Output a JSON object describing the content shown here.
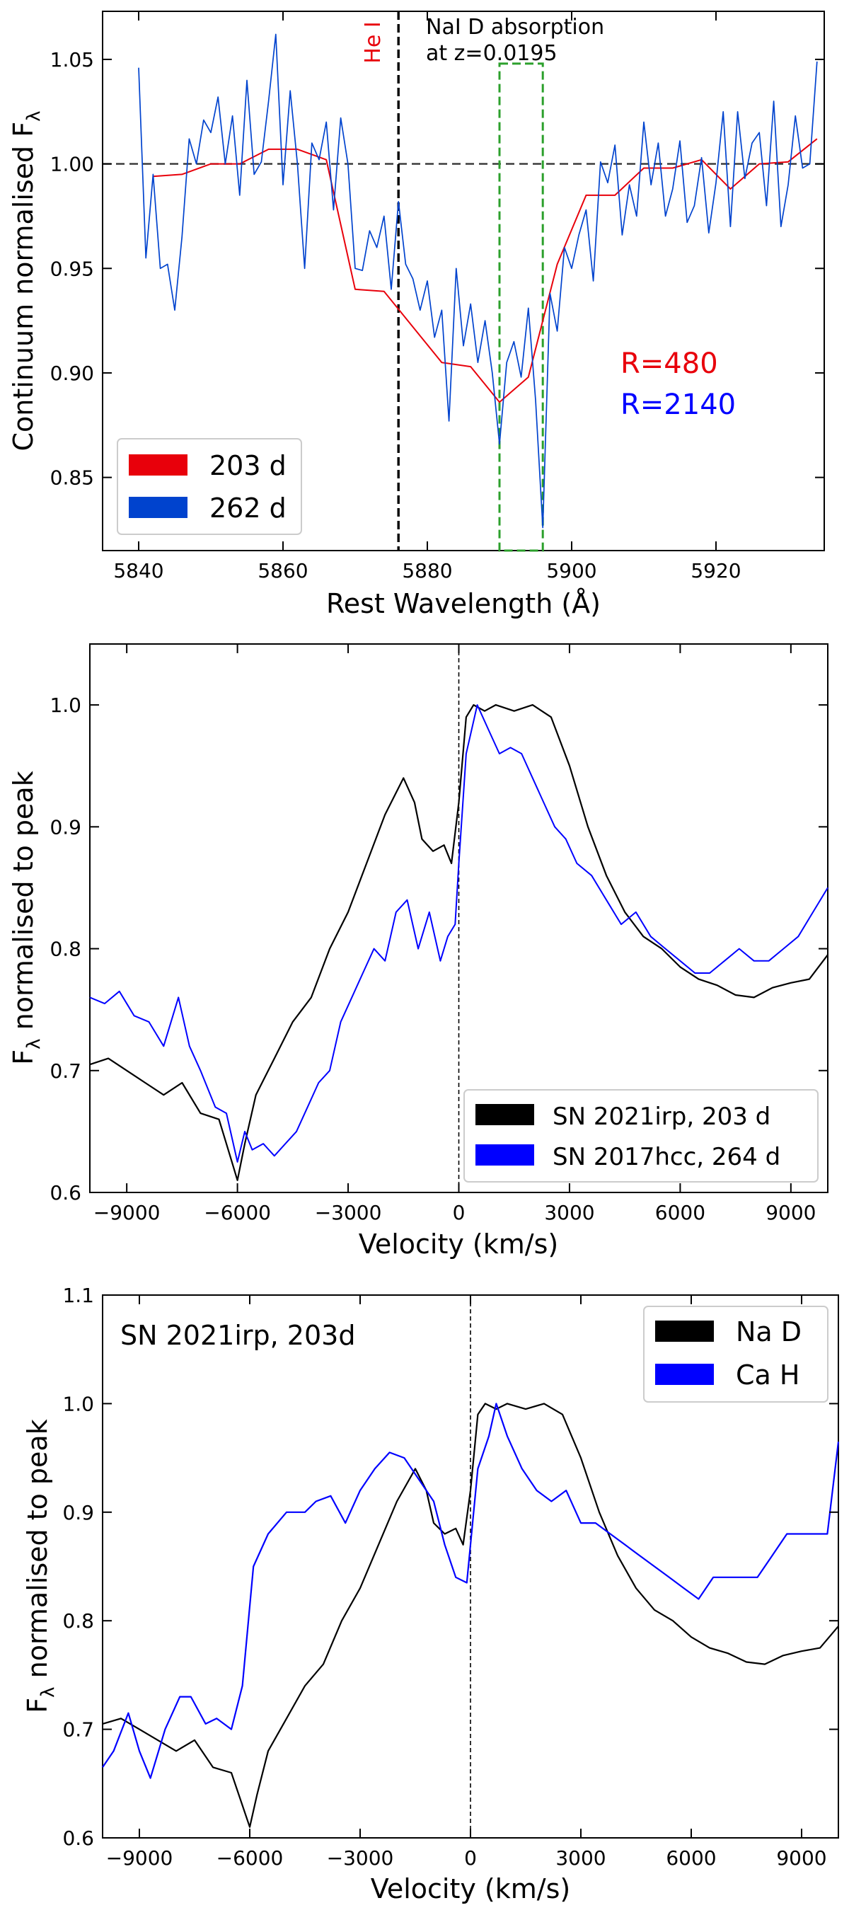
{
  "chart_data": [
    {
      "type": "line",
      "xlabel": "Rest Wavelength (Å)",
      "ylabel": "Continuum normalised F",
      "ylabel_sub": "λ",
      "xlim": [
        5835,
        5935
      ],
      "ylim": [
        0.815,
        1.073
      ],
      "xticks": [
        5840,
        5860,
        5880,
        5900,
        5920
      ],
      "yticks": [
        0.85,
        0.9,
        0.95,
        1.0,
        1.05
      ],
      "ytick_labels": [
        "0.85",
        "0.90",
        "0.95",
        "1.00",
        "1.05"
      ],
      "legend_position": "lower-left",
      "annotations": {
        "hei": "He I",
        "nad_line1": "NaI D absorption",
        "nad_line2": "at z=0.0195",
        "res_red": "R=480",
        "res_blue": "R=2140"
      },
      "reference_lines": {
        "hei_x": 5876,
        "continuum_y": 1.0,
        "nad_box_x": [
          5890,
          5896
        ],
        "nad_box_y": [
          0.815,
          1.048
        ]
      },
      "series": [
        {
          "name": "203 d",
          "color": "#e8000b",
          "x": [
            5842,
            5846,
            5850,
            5854,
            5858,
            5862,
            5866,
            5870,
            5874,
            5878,
            5882,
            5886,
            5890,
            5894,
            5898,
            5902,
            5906,
            5910,
            5914,
            5918,
            5922,
            5926,
            5930,
            5934
          ],
          "y": [
            0.994,
            0.995,
            1.0,
            1.0,
            1.007,
            1.007,
            1.002,
            0.94,
            0.939,
            0.922,
            0.905,
            0.903,
            0.886,
            0.898,
            0.952,
            0.985,
            0.985,
            0.998,
            0.998,
            1.002,
            0.988,
            1.0,
            1.001,
            1.012
          ]
        },
        {
          "name": "262 d",
          "color": "#0043ce",
          "x": [
            5840,
            5841,
            5842,
            5843,
            5844,
            5845,
            5846,
            5847,
            5848,
            5849,
            5850,
            5851,
            5852,
            5853,
            5854,
            5855,
            5856,
            5857,
            5858,
            5859,
            5860,
            5861,
            5862,
            5863,
            5864,
            5865,
            5866,
            5867,
            5868,
            5869,
            5870,
            5871,
            5872,
            5873,
            5874,
            5875,
            5876,
            5877,
            5878,
            5879,
            5880,
            5881,
            5882,
            5883,
            5884,
            5885,
            5886,
            5887,
            5888,
            5889,
            5890,
            5891,
            5892,
            5893,
            5894,
            5895,
            5896,
            5897,
            5898,
            5899,
            5900,
            5901,
            5902,
            5903,
            5904,
            5905,
            5906,
            5907,
            5908,
            5909,
            5910,
            5911,
            5912,
            5913,
            5914,
            5915,
            5916,
            5917,
            5918,
            5919,
            5920,
            5921,
            5922,
            5923,
            5924,
            5925,
            5926,
            5927,
            5928,
            5929,
            5930,
            5931,
            5932,
            5933,
            5934
          ],
          "y": [
            1.046,
            0.955,
            0.995,
            0.95,
            0.952,
            0.93,
            0.965,
            1.012,
            1.0,
            1.021,
            1.015,
            1.032,
            1.0,
            1.023,
            0.985,
            1.04,
            0.995,
            1.001,
            1.03,
            1.062,
            0.99,
            1.035,
            1.0,
            0.95,
            1.01,
            1.002,
            1.02,
            0.978,
            1.022,
            1.0,
            0.95,
            0.949,
            0.968,
            0.96,
            0.975,
            0.94,
            0.982,
            0.952,
            0.945,
            0.93,
            0.944,
            0.917,
            0.93,
            0.877,
            0.95,
            0.913,
            0.933,
            0.905,
            0.925,
            0.9,
            0.866,
            0.905,
            0.915,
            0.898,
            0.931,
            0.887,
            0.826,
            0.938,
            0.92,
            0.96,
            0.95,
            0.966,
            0.978,
            0.944,
            1.001,
            0.991,
            1.009,
            0.966,
            0.99,
            0.975,
            1.02,
            0.99,
            1.01,
            0.975,
            0.988,
            1.011,
            0.972,
            0.98,
            1.003,
            0.967,
            0.991,
            1.025,
            0.97,
            1.025,
            0.993,
            1.01,
            1.015,
            0.98,
            1.03,
            0.97,
            0.99,
            1.023,
            0.998,
            1.0,
            1.049
          ]
        }
      ]
    },
    {
      "type": "line",
      "xlabel": "Velocity (km/s)",
      "ylabel": "F",
      "ylabel_sub": "λ",
      "ylabel_rest": " normalised to peak",
      "xlim": [
        -10000,
        10000
      ],
      "ylim": [
        0.6,
        1.05
      ],
      "xticks": [
        -9000,
        -6000,
        -3000,
        0,
        3000,
        6000,
        9000
      ],
      "xtick_labels": [
        "−9000",
        "−6000",
        "−3000",
        "0",
        "3000",
        "6000",
        "9000"
      ],
      "yticks": [
        0.6,
        0.7,
        0.8,
        0.9,
        1.0
      ],
      "ytick_labels": [
        "0.6",
        "0.7",
        "0.8",
        "0.9",
        "1.0"
      ],
      "legend_position": "lower-right",
      "reference_lines": {
        "x0": 0
      },
      "series": [
        {
          "name": "SN 2021irp, 203 d",
          "color": "#000000",
          "x": [
            -10000,
            -9500,
            -9000,
            -8500,
            -8000,
            -7500,
            -7000,
            -6500,
            -6200,
            -6000,
            -5800,
            -5500,
            -5000,
            -4500,
            -4000,
            -3500,
            -3000,
            -2500,
            -2000,
            -1500,
            -1200,
            -1000,
            -700,
            -400,
            -200,
            0,
            200,
            400,
            700,
            1000,
            1500,
            2000,
            2500,
            3000,
            3500,
            4000,
            4500,
            5000,
            5500,
            6000,
            6500,
            7000,
            7500,
            8000,
            8500,
            9000,
            9500,
            10000
          ],
          "y": [
            0.705,
            0.71,
            0.7,
            0.69,
            0.68,
            0.69,
            0.665,
            0.66,
            0.63,
            0.61,
            0.64,
            0.68,
            0.71,
            0.74,
            0.76,
            0.8,
            0.83,
            0.87,
            0.91,
            0.94,
            0.92,
            0.89,
            0.88,
            0.885,
            0.87,
            0.92,
            0.99,
            1.0,
            0.995,
            1.0,
            0.995,
            1.0,
            0.99,
            0.95,
            0.9,
            0.86,
            0.83,
            0.81,
            0.8,
            0.785,
            0.775,
            0.77,
            0.762,
            0.76,
            0.768,
            0.772,
            0.775,
            0.795
          ]
        },
        {
          "name": "SN 2017hcc, 264 d",
          "color": "#0000ff",
          "x": [
            -10000,
            -9600,
            -9200,
            -8800,
            -8400,
            -8000,
            -7600,
            -7300,
            -7000,
            -6600,
            -6300,
            -6000,
            -5800,
            -5600,
            -5300,
            -5000,
            -4700,
            -4400,
            -4100,
            -3800,
            -3500,
            -3200,
            -2900,
            -2600,
            -2300,
            -2000,
            -1700,
            -1400,
            -1100,
            -800,
            -500,
            -300,
            -100,
            0,
            200,
            500,
            800,
            1100,
            1400,
            1700,
            2000,
            2300,
            2600,
            2900,
            3200,
            3600,
            4000,
            4400,
            4800,
            5200,
            5600,
            6000,
            6400,
            6800,
            7200,
            7600,
            8000,
            8400,
            8800,
            9200,
            9600,
            10000
          ],
          "y": [
            0.76,
            0.755,
            0.765,
            0.745,
            0.74,
            0.72,
            0.76,
            0.72,
            0.7,
            0.67,
            0.665,
            0.625,
            0.65,
            0.635,
            0.64,
            0.63,
            0.64,
            0.65,
            0.67,
            0.69,
            0.7,
            0.74,
            0.76,
            0.78,
            0.8,
            0.79,
            0.83,
            0.84,
            0.8,
            0.83,
            0.79,
            0.81,
            0.82,
            0.87,
            0.96,
            1.0,
            0.98,
            0.96,
            0.965,
            0.96,
            0.94,
            0.92,
            0.9,
            0.89,
            0.87,
            0.86,
            0.84,
            0.82,
            0.83,
            0.81,
            0.8,
            0.79,
            0.78,
            0.78,
            0.79,
            0.8,
            0.79,
            0.79,
            0.8,
            0.81,
            0.83,
            0.85
          ]
        }
      ]
    },
    {
      "type": "line",
      "xlabel": "Velocity (km/s)",
      "ylabel": "F",
      "ylabel_sub": "λ",
      "ylabel_rest": " normalised to peak",
      "xlim": [
        -10000,
        10000
      ],
      "ylim": [
        0.6,
        1.1
      ],
      "xticks": [
        -9000,
        -6000,
        -3000,
        0,
        3000,
        6000,
        9000
      ],
      "xtick_labels": [
        "−9000",
        "−6000",
        "−3000",
        "0",
        "3000",
        "6000",
        "9000"
      ],
      "yticks": [
        0.6,
        0.7,
        0.8,
        0.9,
        1.0,
        1.1
      ],
      "ytick_labels": [
        "0.6",
        "0.7",
        "0.8",
        "0.9",
        "1.0",
        "1.1"
      ],
      "legend_position": "top-right",
      "annotation": "SN 2021irp, 203d",
      "reference_lines": {
        "x0": 0
      },
      "series": [
        {
          "name": "Na D",
          "color": "#000000",
          "x": [
            -10000,
            -9500,
            -9000,
            -8500,
            -8000,
            -7500,
            -7000,
            -6500,
            -6200,
            -6000,
            -5800,
            -5500,
            -5000,
            -4500,
            -4000,
            -3500,
            -3000,
            -2500,
            -2000,
            -1500,
            -1200,
            -1000,
            -700,
            -400,
            -200,
            0,
            200,
            400,
            700,
            1000,
            1500,
            2000,
            2500,
            3000,
            3500,
            4000,
            4500,
            5000,
            5500,
            6000,
            6500,
            7000,
            7500,
            8000,
            8500,
            9000,
            9500,
            10000
          ],
          "y": [
            0.705,
            0.71,
            0.7,
            0.69,
            0.68,
            0.69,
            0.665,
            0.66,
            0.63,
            0.61,
            0.64,
            0.68,
            0.71,
            0.74,
            0.76,
            0.8,
            0.83,
            0.87,
            0.91,
            0.94,
            0.92,
            0.89,
            0.88,
            0.885,
            0.87,
            0.92,
            0.99,
            1.0,
            0.995,
            1.0,
            0.995,
            1.0,
            0.99,
            0.95,
            0.9,
            0.86,
            0.83,
            0.81,
            0.8,
            0.785,
            0.775,
            0.77,
            0.762,
            0.76,
            0.768,
            0.772,
            0.775,
            0.795
          ]
        },
        {
          "name": "Ca H",
          "color": "#0000ff",
          "x": [
            -10000,
            -9700,
            -9300,
            -9000,
            -8700,
            -8300,
            -7900,
            -7600,
            -7200,
            -6900,
            -6500,
            -6200,
            -5900,
            -5500,
            -5000,
            -4500,
            -4200,
            -3800,
            -3400,
            -3000,
            -2600,
            -2200,
            -1800,
            -1400,
            -1000,
            -700,
            -400,
            -100,
            0,
            200,
            500,
            700,
            1000,
            1400,
            1800,
            2200,
            2600,
            3000,
            3400,
            3800,
            4200,
            4600,
            5000,
            5400,
            5800,
            6200,
            6600,
            7000,
            7400,
            7800,
            8200,
            8600,
            9000,
            9400,
            9700,
            10000
          ],
          "y": [
            0.665,
            0.68,
            0.715,
            0.68,
            0.655,
            0.7,
            0.73,
            0.73,
            0.705,
            0.71,
            0.7,
            0.74,
            0.85,
            0.88,
            0.9,
            0.9,
            0.91,
            0.915,
            0.89,
            0.92,
            0.94,
            0.955,
            0.95,
            0.93,
            0.91,
            0.87,
            0.84,
            0.835,
            0.87,
            0.94,
            0.97,
            1.0,
            0.97,
            0.94,
            0.92,
            0.91,
            0.92,
            0.89,
            0.89,
            0.88,
            0.87,
            0.86,
            0.85,
            0.84,
            0.83,
            0.82,
            0.84,
            0.84,
            0.84,
            0.84,
            0.86,
            0.88,
            0.88,
            0.88,
            0.88,
            0.965
          ]
        }
      ]
    }
  ]
}
